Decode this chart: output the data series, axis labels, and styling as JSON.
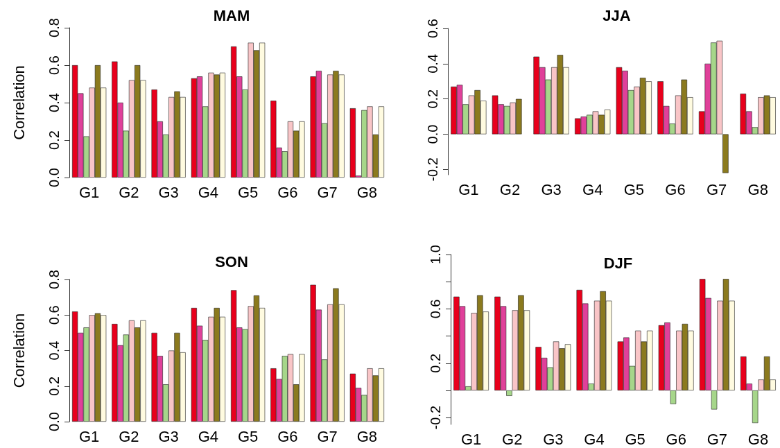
{
  "chart_data": [
    {
      "type": "bar",
      "title": "MAM",
      "ylabel": "Correlation",
      "categories": [
        "G1",
        "G2",
        "G3",
        "G4",
        "G5",
        "G6",
        "G7",
        "G8"
      ],
      "ylim": [
        0,
        0.8
      ],
      "yticks": [
        {
          "value": 0,
          "label": "0.0"
        },
        0.2,
        0.4,
        0.6,
        0.8
      ],
      "grid": false,
      "series": [
        {
          "color": "#e8001c",
          "values": [
            0.6,
            0.62,
            0.47,
            0.53,
            0.7,
            0.41,
            0.54,
            0.37
          ]
        },
        {
          "color": "#e0409a",
          "values": [
            0.45,
            0.4,
            0.3,
            0.54,
            0.54,
            0.16,
            0.57,
            0.01
          ]
        },
        {
          "color": "#a6d68a",
          "values": [
            0.22,
            0.25,
            0.23,
            0.38,
            0.47,
            0.14,
            0.29,
            0.36
          ]
        },
        {
          "color": "#f9c5c7",
          "values": [
            0.48,
            0.52,
            0.43,
            0.56,
            0.72,
            0.3,
            0.55,
            0.38
          ]
        },
        {
          "color": "#8b7a1e",
          "values": [
            0.6,
            0.6,
            0.46,
            0.55,
            0.68,
            0.25,
            0.57,
            0.23
          ]
        },
        {
          "color": "#fffbe0",
          "values": [
            0.48,
            0.52,
            0.43,
            0.56,
            0.72,
            0.3,
            0.55,
            0.38
          ]
        }
      ]
    },
    {
      "type": "bar",
      "title": "JJA",
      "categories": [
        "G1",
        "G2",
        "G3",
        "G4",
        "G5",
        "G6",
        "G7",
        "G8"
      ],
      "ylim": [
        -0.23,
        0.6
      ],
      "yticks": [
        -0.2,
        {
          "value": 0,
          "label": "0.0"
        },
        0.2,
        0.4,
        0.6
      ],
      "grid": false,
      "series": [
        {
          "color": "#e8001c",
          "values": [
            0.27,
            0.22,
            0.44,
            0.09,
            0.38,
            0.3,
            0.13,
            0.23
          ]
        },
        {
          "color": "#e0409a",
          "values": [
            0.28,
            0.17,
            0.38,
            0.1,
            0.36,
            0.16,
            0.4,
            0.13
          ]
        },
        {
          "color": "#a6d68a",
          "values": [
            0.17,
            0.16,
            0.31,
            0.11,
            0.25,
            0.06,
            0.52,
            0.04
          ]
        },
        {
          "color": "#f9c5c7",
          "values": [
            0.22,
            0.18,
            0.38,
            0.13,
            0.27,
            0.22,
            0.53,
            0.21
          ]
        },
        {
          "color": "#8b7a1e",
          "values": [
            0.25,
            0.2,
            0.45,
            0.11,
            0.32,
            0.31,
            -0.22,
            0.22
          ]
        },
        {
          "color": "#fffbe0",
          "values": [
            0.19,
            null,
            0.38,
            0.14,
            0.3,
            0.21,
            null,
            0.21
          ]
        }
      ]
    },
    {
      "type": "bar",
      "title": "SON",
      "ylabel": "Correlation",
      "categories": [
        "G1",
        "G2",
        "G3",
        "G4",
        "G5",
        "G6",
        "G7",
        "G8"
      ],
      "ylim": [
        0,
        0.8
      ],
      "yticks": [
        {
          "value": 0,
          "label": "0.0"
        },
        0.2,
        0.4,
        0.6,
        0.8
      ],
      "grid": false,
      "series": [
        {
          "color": "#e8001c",
          "values": [
            0.62,
            0.55,
            0.5,
            0.64,
            0.74,
            0.3,
            0.77,
            0.27
          ]
        },
        {
          "color": "#e0409a",
          "values": [
            0.5,
            0.43,
            0.37,
            0.54,
            0.53,
            0.24,
            0.63,
            0.19
          ]
        },
        {
          "color": "#a6d68a",
          "values": [
            0.53,
            0.49,
            0.21,
            0.46,
            0.52,
            0.37,
            0.35,
            0.15
          ]
        },
        {
          "color": "#f9c5c7",
          "values": [
            0.6,
            0.57,
            0.4,
            0.59,
            0.65,
            0.38,
            0.66,
            0.3
          ]
        },
        {
          "color": "#8b7a1e",
          "values": [
            0.61,
            0.53,
            0.5,
            0.64,
            0.71,
            0.21,
            0.75,
            0.26
          ]
        },
        {
          "color": "#fffbe0",
          "values": [
            0.6,
            0.57,
            0.39,
            0.59,
            0.64,
            0.38,
            0.66,
            0.3
          ]
        }
      ]
    },
    {
      "type": "bar",
      "title": "DJF",
      "categories": [
        "G1",
        "G2",
        "G3",
        "G4",
        "G5",
        "G6",
        "G7",
        "G8"
      ],
      "ylim": [
        -0.25,
        1.0
      ],
      "yticks": [
        -0.2,
        {
          "value": 0,
          "label": null
        },
        0.2,
        {
          "value": 0.4,
          "label": null
        },
        0.6,
        {
          "value": 0.8,
          "label": null
        },
        {
          "value": 1.0,
          "label": "1.0"
        }
      ],
      "grid": false,
      "series": [
        {
          "color": "#e8001c",
          "values": [
            0.69,
            0.69,
            0.32,
            0.74,
            0.36,
            0.48,
            0.82,
            0.25
          ]
        },
        {
          "color": "#e0409a",
          "values": [
            0.62,
            0.62,
            0.24,
            0.64,
            0.39,
            0.5,
            0.68,
            0.05
          ]
        },
        {
          "color": "#a6d68a",
          "values": [
            0.03,
            -0.04,
            0.17,
            0.05,
            0.18,
            -0.1,
            -0.14,
            -0.24
          ]
        },
        {
          "color": "#f9c5c7",
          "values": [
            0.57,
            0.59,
            0.36,
            0.66,
            0.44,
            0.44,
            0.66,
            0.08
          ]
        },
        {
          "color": "#8b7a1e",
          "values": [
            0.7,
            0.7,
            0.31,
            0.73,
            0.36,
            0.49,
            0.82,
            0.25
          ]
        },
        {
          "color": "#fffbe0",
          "values": [
            0.58,
            0.59,
            0.34,
            0.66,
            0.44,
            0.44,
            0.66,
            0.08
          ]
        }
      ]
    }
  ]
}
